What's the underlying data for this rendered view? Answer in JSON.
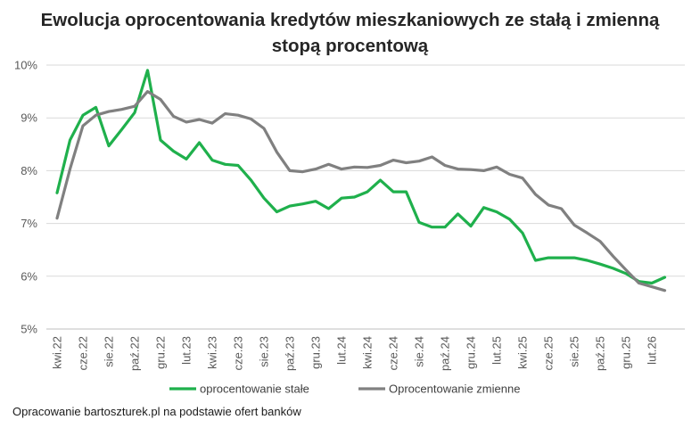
{
  "title_line1": "Ewolucja oprocentowania kredytów mieszkaniowych ze stałą i zmienną",
  "title_line2": "stopą procentową",
  "source_note": "Opracowanie bartoszturek.pl na podstawie ofert banków",
  "chart_data": {
    "type": "line",
    "ylim": [
      5,
      10
    ],
    "y_ticks": [
      "5%",
      "6%",
      "7%",
      "8%",
      "9%",
      "10%"
    ],
    "y_tick_values": [
      5,
      6,
      7,
      8,
      9,
      10
    ],
    "grid": "horizontal",
    "legend_position": "bottom",
    "x_tick_labels": [
      "kwi.22",
      "cze.22",
      "sie.22",
      "paź.22",
      "gru.22",
      "lut.23",
      "kwi.23",
      "cze.23",
      "sie.23",
      "paź.23",
      "gru.23",
      "lut.24",
      "kwi.24",
      "cze.24",
      "sie.24",
      "paź.24",
      "gru.24",
      "lut.25",
      "kwi.25",
      "cze.25",
      "sie.25",
      "paź.25",
      "gru.25",
      "lut.26"
    ],
    "series": [
      {
        "name": "oprocentowanie stałe",
        "color": "#1fb04c",
        "values": [
          7.58,
          8.58,
          9.05,
          9.2,
          8.47,
          8.78,
          9.1,
          9.9,
          8.58,
          8.37,
          8.22,
          8.53,
          8.2,
          8.12,
          8.1,
          7.82,
          7.48,
          7.22,
          7.33,
          7.37,
          7.42,
          7.28,
          7.48,
          7.5,
          7.6,
          7.82,
          7.6,
          7.6,
          7.02,
          6.93,
          6.93,
          7.18,
          6.95,
          7.3,
          7.22,
          7.08,
          6.82,
          6.3,
          6.35,
          6.35,
          6.35,
          6.3,
          6.23,
          6.15,
          6.05,
          5.9,
          5.87,
          5.98
        ]
      },
      {
        "name": "Oprocentowanie zmienne",
        "color": "#808080",
        "values": [
          7.1,
          8.03,
          8.85,
          9.05,
          9.12,
          9.16,
          9.22,
          9.5,
          9.35,
          9.03,
          8.92,
          8.97,
          8.9,
          9.08,
          9.05,
          8.98,
          8.8,
          8.35,
          8.0,
          7.98,
          8.03,
          8.12,
          8.03,
          8.07,
          8.06,
          8.1,
          8.2,
          8.15,
          8.18,
          8.26,
          8.1,
          8.03,
          8.02,
          8.0,
          8.07,
          7.93,
          7.86,
          7.55,
          7.35,
          7.28,
          6.97,
          6.82,
          6.66,
          6.38,
          6.12,
          5.87,
          5.8,
          5.73
        ]
      }
    ]
  }
}
